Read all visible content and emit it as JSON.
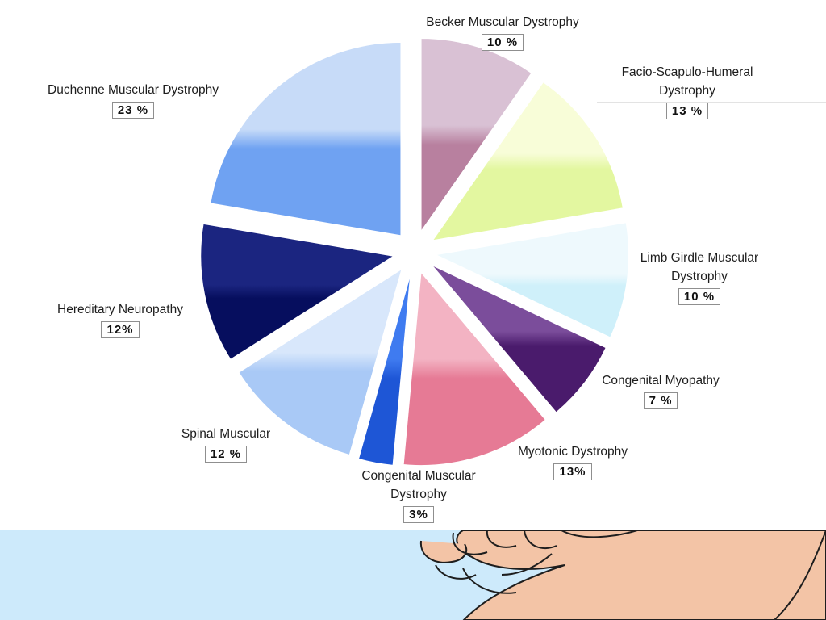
{
  "colors": {
    "background": "#ffffff",
    "bottom_band": "#cdeafb",
    "skin": "#f3c4a6",
    "outline": "#1e1e1e"
  },
  "chart_data": {
    "type": "pie",
    "title": "",
    "start_angle_deg": 0,
    "direction": "clockwise",
    "exploded": true,
    "slices": [
      {
        "label": "Becker Muscular Dystrophy",
        "value": 10,
        "value_label": "10 %",
        "color": "#b8809f",
        "color_light": "#d9c1d4"
      },
      {
        "label": "Facio-Scapulo-Humeral Dystrophy",
        "value": 13,
        "value_label": "13 %",
        "color": "#e3f7a0",
        "color_light": "#f8fdd8"
      },
      {
        "label": "Limb Girdle Muscular Dystrophy",
        "value": 10,
        "value_label": "10 %",
        "color": "#cff0fa",
        "color_light": "#eef9fd"
      },
      {
        "label": "Congenital Myopathy",
        "value": 7,
        "value_label": "7 %",
        "color": "#4a1b6c",
        "color_light": "#7b4d9b"
      },
      {
        "label": "Myotonic Dystrophy",
        "value": 13,
        "value_label": "13%",
        "color": "#e67a95",
        "color_light": "#f3b3c3"
      },
      {
        "label": "Congenital Muscular Dystrophy",
        "value": 3,
        "value_label": "3%",
        "color": "#1e56d6",
        "color_light": "#3f7bf0"
      },
      {
        "label": "Spinal Muscular",
        "value": 12,
        "value_label": "12 %",
        "color": "#a9c9f6",
        "color_light": "#d8e7fb"
      },
      {
        "label": "Hereditary Neuropathy",
        "value": 12,
        "value_label": "12%",
        "color": "#060e5e",
        "color_light": "#1b2580"
      },
      {
        "label": "Duchenne Muscular Dystrophy",
        "value": 23,
        "value_label": "23 %",
        "color": "#6fa2f2",
        "color_light": "#c7dbf8"
      }
    ]
  },
  "labels": {
    "becker": {
      "line1": "Becker Muscular Dystrophy",
      "line2": "",
      "pct": "10 %"
    },
    "facio": {
      "line1": "Facio-Scapulo-Humeral",
      "line2": "Dystrophy",
      "pct": "13 %"
    },
    "limb": {
      "line1": "Limb Girdle Muscular",
      "line2": "Dystrophy",
      "pct": "10 %"
    },
    "congenital_myopathy": {
      "line1": "Congenital Myopathy",
      "line2": "",
      "pct": "7 %"
    },
    "myotonic": {
      "line1": "Myotonic Dystrophy",
      "line2": "",
      "pct": "13%"
    },
    "congenital_muscular": {
      "line1": "Congenital Muscular",
      "line2": "Dystrophy",
      "pct": "3%"
    },
    "spinal": {
      "line1": "Spinal Muscular",
      "line2": "",
      "pct": "12 %"
    },
    "hereditary": {
      "line1": "Hereditary Neuropathy",
      "line2": "",
      "pct": "12%"
    },
    "duchenne": {
      "line1": "Duchenne Muscular Dystrophy",
      "line2": "",
      "pct": "23 %"
    }
  }
}
